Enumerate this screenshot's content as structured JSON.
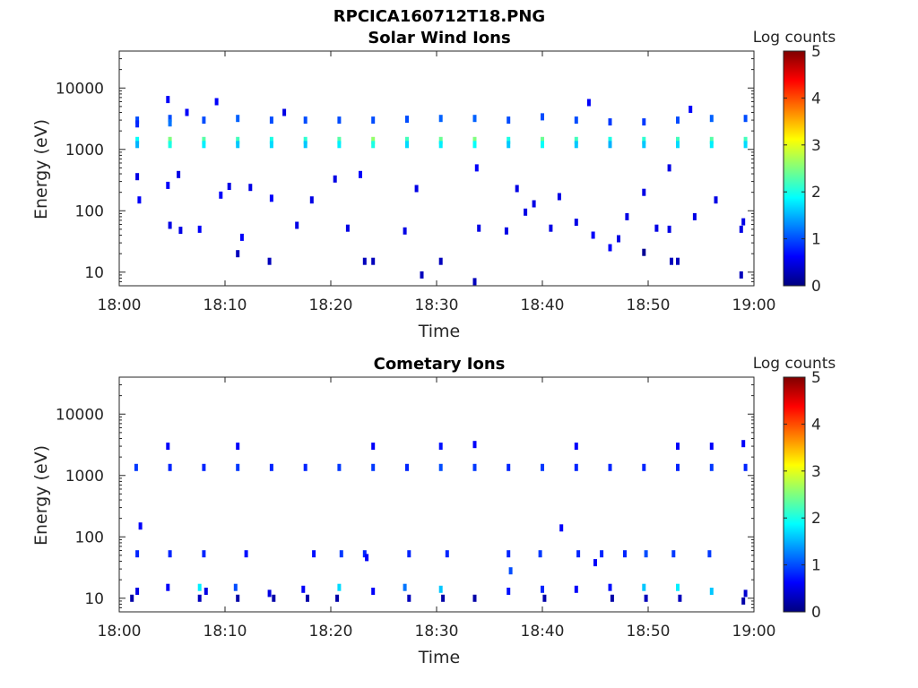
{
  "figure": {
    "filename_title": "RPCICA160712T18.PNG"
  },
  "colormap": {
    "name": "jet",
    "stops": [
      "#00007f",
      "#0000ff",
      "#007fff",
      "#00ffff",
      "#7fff7f",
      "#ffff00",
      "#ff7f00",
      "#ff0000",
      "#7f0000"
    ]
  },
  "chart_data": [
    {
      "type": "heatmap",
      "title": "Solar Wind Ions",
      "xlabel": "Time",
      "ylabel": "Energy (eV)",
      "xticks": [
        "18:00",
        "18:10",
        "18:20",
        "18:30",
        "18:40",
        "18:50",
        "19:00"
      ],
      "xlim_minutes": [
        0,
        60
      ],
      "yscale": "log",
      "ylim": [
        6,
        40000
      ],
      "yticks": [
        10,
        100,
        1000,
        10000
      ],
      "ytick_labels": [
        "10",
        "100",
        "1000",
        "10000"
      ],
      "colorbar": {
        "label": "Log counts",
        "range": [
          0,
          5
        ],
        "ticks": [
          "0",
          "1",
          "2",
          "3",
          "4",
          "5"
        ]
      },
      "grid": false,
      "cells": [
        {
          "t": 1.7,
          "e": 1400,
          "c": 1.9
        },
        {
          "t": 1.7,
          "e": 1200,
          "c": 1.5
        },
        {
          "t": 1.7,
          "e": 3000,
          "c": 1.0
        },
        {
          "t": 1.7,
          "e": 2600,
          "c": 0.8
        },
        {
          "t": 4.8,
          "e": 1400,
          "c": 2.5
        },
        {
          "t": 4.8,
          "e": 1200,
          "c": 2.0
        },
        {
          "t": 4.8,
          "e": 3200,
          "c": 1.0
        },
        {
          "t": 4.8,
          "e": 2700,
          "c": 1.2
        },
        {
          "t": 8.0,
          "e": 1400,
          "c": 2.3
        },
        {
          "t": 8.0,
          "e": 1200,
          "c": 1.8
        },
        {
          "t": 8.0,
          "e": 3000,
          "c": 1.0
        },
        {
          "t": 11.2,
          "e": 1400,
          "c": 2.2
        },
        {
          "t": 11.2,
          "e": 1200,
          "c": 1.6
        },
        {
          "t": 11.2,
          "e": 3200,
          "c": 1.1
        },
        {
          "t": 14.4,
          "e": 1400,
          "c": 2.0
        },
        {
          "t": 14.4,
          "e": 1200,
          "c": 1.7
        },
        {
          "t": 14.4,
          "e": 3000,
          "c": 1.0
        },
        {
          "t": 17.6,
          "e": 1400,
          "c": 2.1
        },
        {
          "t": 17.6,
          "e": 1200,
          "c": 1.6
        },
        {
          "t": 17.6,
          "e": 3000,
          "c": 1.0
        },
        {
          "t": 20.8,
          "e": 1400,
          "c": 2.3
        },
        {
          "t": 20.8,
          "e": 1200,
          "c": 1.8
        },
        {
          "t": 20.8,
          "e": 3000,
          "c": 1.0
        },
        {
          "t": 24.0,
          "e": 1400,
          "c": 2.6
        },
        {
          "t": 24.0,
          "e": 1200,
          "c": 2.0
        },
        {
          "t": 24.0,
          "e": 3000,
          "c": 1.0
        },
        {
          "t": 27.2,
          "e": 1400,
          "c": 2.2
        },
        {
          "t": 27.2,
          "e": 1200,
          "c": 1.7
        },
        {
          "t": 27.2,
          "e": 3100,
          "c": 1.0
        },
        {
          "t": 30.4,
          "e": 1400,
          "c": 2.4
        },
        {
          "t": 30.4,
          "e": 1200,
          "c": 1.8
        },
        {
          "t": 30.4,
          "e": 3200,
          "c": 1.1
        },
        {
          "t": 33.6,
          "e": 1400,
          "c": 2.5
        },
        {
          "t": 33.6,
          "e": 1200,
          "c": 1.9
        },
        {
          "t": 33.6,
          "e": 3200,
          "c": 1.1
        },
        {
          "t": 36.8,
          "e": 1400,
          "c": 2.0
        },
        {
          "t": 36.8,
          "e": 1200,
          "c": 1.6
        },
        {
          "t": 36.8,
          "e": 3000,
          "c": 1.0
        },
        {
          "t": 40.0,
          "e": 1400,
          "c": 2.4
        },
        {
          "t": 40.0,
          "e": 1200,
          "c": 1.9
        },
        {
          "t": 40.0,
          "e": 3400,
          "c": 1.0
        },
        {
          "t": 43.2,
          "e": 1400,
          "c": 2.2
        },
        {
          "t": 43.2,
          "e": 1200,
          "c": 1.6
        },
        {
          "t": 43.2,
          "e": 3000,
          "c": 1.0
        },
        {
          "t": 46.4,
          "e": 1400,
          "c": 2.0
        },
        {
          "t": 46.4,
          "e": 1200,
          "c": 1.5
        },
        {
          "t": 46.4,
          "e": 2800,
          "c": 0.9
        },
        {
          "t": 49.6,
          "e": 1400,
          "c": 2.1
        },
        {
          "t": 49.6,
          "e": 1200,
          "c": 1.6
        },
        {
          "t": 49.6,
          "e": 2800,
          "c": 0.9
        },
        {
          "t": 52.8,
          "e": 1400,
          "c": 2.2
        },
        {
          "t": 52.8,
          "e": 1200,
          "c": 1.7
        },
        {
          "t": 52.8,
          "e": 3000,
          "c": 1.0
        },
        {
          "t": 56.0,
          "e": 1400,
          "c": 2.3
        },
        {
          "t": 56.0,
          "e": 1200,
          "c": 1.8
        },
        {
          "t": 56.0,
          "e": 3200,
          "c": 1.1
        },
        {
          "t": 59.2,
          "e": 1400,
          "c": 2.2
        },
        {
          "t": 59.2,
          "e": 1200,
          "c": 1.7
        },
        {
          "t": 59.2,
          "e": 3200,
          "c": 1.0
        },
        {
          "t": 4.6,
          "e": 260,
          "c": 0.6
        },
        {
          "t": 5.6,
          "e": 390,
          "c": 0.5
        },
        {
          "t": 9.6,
          "e": 180,
          "c": 0.6
        },
        {
          "t": 10.4,
          "e": 250,
          "c": 0.5
        },
        {
          "t": 12.4,
          "e": 240,
          "c": 0.5
        },
        {
          "t": 14.4,
          "e": 160,
          "c": 0.6
        },
        {
          "t": 18.2,
          "e": 150,
          "c": 0.5
        },
        {
          "t": 20.4,
          "e": 330,
          "c": 0.5
        },
        {
          "t": 22.8,
          "e": 390,
          "c": 0.6
        },
        {
          "t": 28.1,
          "e": 230,
          "c": 0.5
        },
        {
          "t": 33.8,
          "e": 500,
          "c": 0.6
        },
        {
          "t": 37.6,
          "e": 230,
          "c": 0.5
        },
        {
          "t": 38.4,
          "e": 95,
          "c": 0.5
        },
        {
          "t": 39.2,
          "e": 130,
          "c": 0.5
        },
        {
          "t": 41.6,
          "e": 170,
          "c": 0.5
        },
        {
          "t": 43.2,
          "e": 65,
          "c": 0.5
        },
        {
          "t": 44.8,
          "e": 40,
          "c": 0.6
        },
        {
          "t": 46.4,
          "e": 25,
          "c": 0.6
        },
        {
          "t": 47.2,
          "e": 35,
          "c": 0.5
        },
        {
          "t": 48.0,
          "e": 80,
          "c": 0.5
        },
        {
          "t": 49.6,
          "e": 200,
          "c": 0.5
        },
        {
          "t": 52.0,
          "e": 500,
          "c": 0.5
        },
        {
          "t": 54.4,
          "e": 80,
          "c": 0.5
        },
        {
          "t": 56.4,
          "e": 150,
          "c": 0.5
        },
        {
          "t": 1.7,
          "e": 360,
          "c": 0.5
        },
        {
          "t": 1.9,
          "e": 150,
          "c": 0.6
        },
        {
          "t": 4.8,
          "e": 58,
          "c": 0.5
        },
        {
          "t": 5.8,
          "e": 48,
          "c": 0.5
        },
        {
          "t": 7.6,
          "e": 50,
          "c": 0.6
        },
        {
          "t": 11.6,
          "e": 37,
          "c": 0.6
        },
        {
          "t": 16.8,
          "e": 58,
          "c": 0.5
        },
        {
          "t": 21.6,
          "e": 52,
          "c": 0.5
        },
        {
          "t": 27.0,
          "e": 47,
          "c": 0.5
        },
        {
          "t": 34.0,
          "e": 52,
          "c": 0.5
        },
        {
          "t": 36.6,
          "e": 47,
          "c": 0.5
        },
        {
          "t": 40.8,
          "e": 52,
          "c": 0.5
        },
        {
          "t": 50.8,
          "e": 52,
          "c": 0.5
        },
        {
          "t": 52.0,
          "e": 50,
          "c": 0.5
        },
        {
          "t": 58.8,
          "e": 50,
          "c": 0.5
        },
        {
          "t": 59.0,
          "e": 66,
          "c": 0.5
        },
        {
          "t": 11.2,
          "e": 20,
          "c": 0.3
        },
        {
          "t": 14.2,
          "e": 15,
          "c": 0.3
        },
        {
          "t": 23.2,
          "e": 15,
          "c": 0.3
        },
        {
          "t": 24.0,
          "e": 15,
          "c": 0.3
        },
        {
          "t": 28.6,
          "e": 9,
          "c": 0.3
        },
        {
          "t": 30.4,
          "e": 15,
          "c": 0.3
        },
        {
          "t": 33.6,
          "e": 7,
          "c": 0.3
        },
        {
          "t": 49.6,
          "e": 21,
          "c": 0.1
        },
        {
          "t": 52.2,
          "e": 15,
          "c": 0.3
        },
        {
          "t": 52.8,
          "e": 15,
          "c": 0.3
        },
        {
          "t": 58.8,
          "e": 9,
          "c": 0.3
        },
        {
          "t": 6.4,
          "e": 4000,
          "c": 0.6
        },
        {
          "t": 15.6,
          "e": 4000,
          "c": 0.5
        },
        {
          "t": 9.2,
          "e": 6000,
          "c": 0.6
        },
        {
          "t": 4.6,
          "e": 6500,
          "c": 0.6
        },
        {
          "t": 44.4,
          "e": 5800,
          "c": 0.6
        },
        {
          "t": 54.0,
          "e": 4500,
          "c": 0.6
        }
      ]
    },
    {
      "type": "heatmap",
      "title": "Cometary Ions",
      "xlabel": "Time",
      "ylabel": "Energy (eV)",
      "xticks": [
        "18:00",
        "18:10",
        "18:20",
        "18:30",
        "18:40",
        "18:50",
        "19:00"
      ],
      "xlim_minutes": [
        0,
        60
      ],
      "yscale": "log",
      "ylim": [
        6,
        40000
      ],
      "yticks": [
        10,
        100,
        1000,
        10000
      ],
      "ytick_labels": [
        "10",
        "100",
        "1000",
        "10000"
      ],
      "colorbar": {
        "label": "Log counts",
        "range": [
          0,
          5
        ],
        "ticks": [
          "0",
          "1",
          "2",
          "3",
          "4",
          "5"
        ]
      },
      "grid": false,
      "cells": [
        {
          "t": 1.6,
          "e": 1350,
          "c": 0.9
        },
        {
          "t": 4.8,
          "e": 1350,
          "c": 0.8
        },
        {
          "t": 8.0,
          "e": 1350,
          "c": 0.8
        },
        {
          "t": 11.2,
          "e": 1350,
          "c": 0.9
        },
        {
          "t": 14.4,
          "e": 1350,
          "c": 0.8
        },
        {
          "t": 17.6,
          "e": 1350,
          "c": 0.8
        },
        {
          "t": 20.8,
          "e": 1350,
          "c": 0.9
        },
        {
          "t": 24.0,
          "e": 1350,
          "c": 0.9
        },
        {
          "t": 27.2,
          "e": 1350,
          "c": 0.8
        },
        {
          "t": 30.4,
          "e": 1350,
          "c": 1.0
        },
        {
          "t": 33.6,
          "e": 1350,
          "c": 0.9
        },
        {
          "t": 36.8,
          "e": 1350,
          "c": 0.8
        },
        {
          "t": 40.0,
          "e": 1350,
          "c": 0.9
        },
        {
          "t": 43.2,
          "e": 1350,
          "c": 0.8
        },
        {
          "t": 46.4,
          "e": 1350,
          "c": 0.8
        },
        {
          "t": 49.6,
          "e": 1350,
          "c": 0.8
        },
        {
          "t": 52.8,
          "e": 1350,
          "c": 0.8
        },
        {
          "t": 56.0,
          "e": 1350,
          "c": 0.9
        },
        {
          "t": 59.2,
          "e": 1350,
          "c": 0.8
        },
        {
          "t": 4.6,
          "e": 3000,
          "c": 0.6
        },
        {
          "t": 11.2,
          "e": 3000,
          "c": 0.6
        },
        {
          "t": 24.0,
          "e": 3000,
          "c": 0.6
        },
        {
          "t": 30.4,
          "e": 3000,
          "c": 0.7
        },
        {
          "t": 33.6,
          "e": 3200,
          "c": 0.6
        },
        {
          "t": 43.2,
          "e": 3000,
          "c": 0.6
        },
        {
          "t": 52.8,
          "e": 3000,
          "c": 0.6
        },
        {
          "t": 56.0,
          "e": 3000,
          "c": 0.6
        },
        {
          "t": 59.0,
          "e": 3300,
          "c": 0.6
        },
        {
          "t": 2.0,
          "e": 150,
          "c": 0.6
        },
        {
          "t": 41.8,
          "e": 140,
          "c": 0.6
        },
        {
          "t": 1.7,
          "e": 53,
          "c": 0.8
        },
        {
          "t": 4.8,
          "e": 53,
          "c": 0.8
        },
        {
          "t": 8.0,
          "e": 53,
          "c": 0.8
        },
        {
          "t": 12.0,
          "e": 53,
          "c": 0.7
        },
        {
          "t": 18.4,
          "e": 53,
          "c": 0.7
        },
        {
          "t": 21.0,
          "e": 53,
          "c": 0.9
        },
        {
          "t": 23.2,
          "e": 53,
          "c": 0.8
        },
        {
          "t": 27.4,
          "e": 53,
          "c": 0.8
        },
        {
          "t": 31.0,
          "e": 53,
          "c": 0.8
        },
        {
          "t": 36.8,
          "e": 53,
          "c": 0.8
        },
        {
          "t": 39.8,
          "e": 53,
          "c": 0.9
        },
        {
          "t": 43.4,
          "e": 53,
          "c": 0.8
        },
        {
          "t": 45.6,
          "e": 53,
          "c": 0.8
        },
        {
          "t": 47.8,
          "e": 53,
          "c": 0.8
        },
        {
          "t": 49.8,
          "e": 53,
          "c": 1.0
        },
        {
          "t": 52.4,
          "e": 53,
          "c": 0.9
        },
        {
          "t": 55.8,
          "e": 53,
          "c": 0.9
        },
        {
          "t": 45.0,
          "e": 38,
          "c": 0.6
        },
        {
          "t": 23.4,
          "e": 46,
          "c": 0.6
        },
        {
          "t": 37.0,
          "e": 28,
          "c": 1.0
        },
        {
          "t": 1.2,
          "e": 10,
          "c": 0.2
        },
        {
          "t": 1.7,
          "e": 13,
          "c": 0.5
        },
        {
          "t": 4.6,
          "e": 15,
          "c": 0.6
        },
        {
          "t": 7.6,
          "e": 15,
          "c": 1.8
        },
        {
          "t": 7.6,
          "e": 10,
          "c": 0.3
        },
        {
          "t": 8.2,
          "e": 13,
          "c": 0.5
        },
        {
          "t": 11.0,
          "e": 15,
          "c": 1.0
        },
        {
          "t": 11.2,
          "e": 10,
          "c": 0.2
        },
        {
          "t": 14.2,
          "e": 12,
          "c": 0.5
        },
        {
          "t": 14.6,
          "e": 10,
          "c": 0.2
        },
        {
          "t": 17.4,
          "e": 14,
          "c": 0.6
        },
        {
          "t": 17.8,
          "e": 10,
          "c": 0.2
        },
        {
          "t": 20.8,
          "e": 15,
          "c": 1.7
        },
        {
          "t": 20.6,
          "e": 10,
          "c": 0.2
        },
        {
          "t": 24.0,
          "e": 13,
          "c": 0.6
        },
        {
          "t": 27.0,
          "e": 15,
          "c": 1.2
        },
        {
          "t": 27.4,
          "e": 10,
          "c": 0.3
        },
        {
          "t": 30.4,
          "e": 14,
          "c": 1.6
        },
        {
          "t": 30.6,
          "e": 10,
          "c": 0.2
        },
        {
          "t": 33.6,
          "e": 10,
          "c": 0.2
        },
        {
          "t": 36.8,
          "e": 13,
          "c": 0.7
        },
        {
          "t": 40.0,
          "e": 14,
          "c": 0.8
        },
        {
          "t": 40.2,
          "e": 10,
          "c": 0.2
        },
        {
          "t": 43.2,
          "e": 14,
          "c": 0.6
        },
        {
          "t": 46.4,
          "e": 15,
          "c": 0.7
        },
        {
          "t": 46.6,
          "e": 10,
          "c": 0.2
        },
        {
          "t": 49.6,
          "e": 15,
          "c": 1.6
        },
        {
          "t": 49.8,
          "e": 10,
          "c": 0.3
        },
        {
          "t": 52.8,
          "e": 15,
          "c": 1.8
        },
        {
          "t": 53.0,
          "e": 10,
          "c": 0.3
        },
        {
          "t": 56.0,
          "e": 13,
          "c": 1.6
        },
        {
          "t": 59.2,
          "e": 12,
          "c": 0.4
        },
        {
          "t": 59.0,
          "e": 9,
          "c": 0.2
        }
      ]
    }
  ]
}
